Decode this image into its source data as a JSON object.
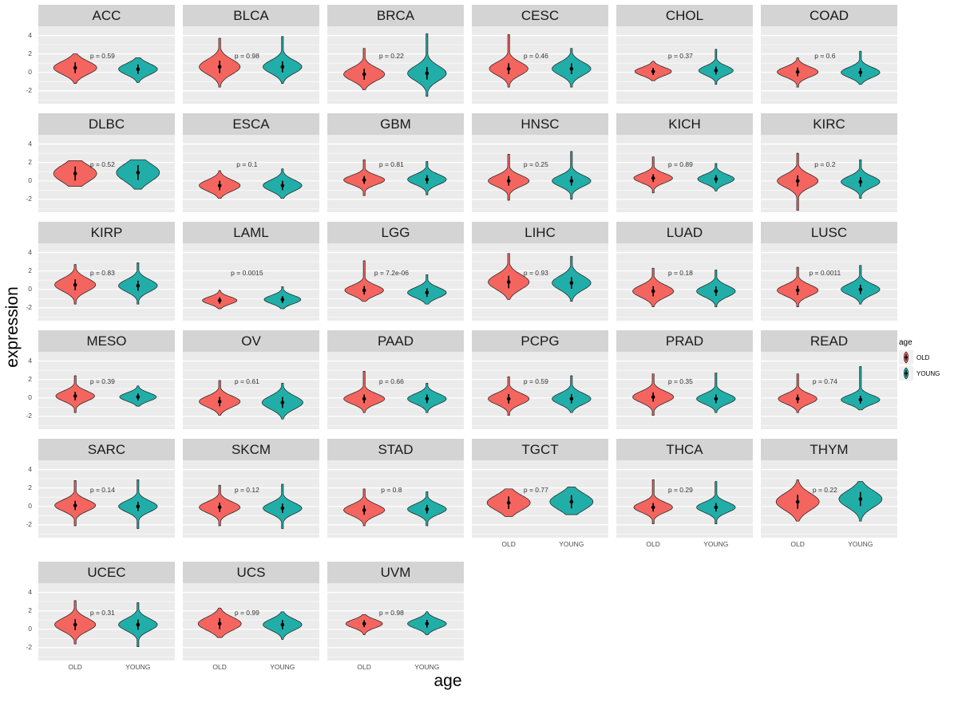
{
  "chart_data": {
    "type": "violin",
    "title": "",
    "xlabel": "age",
    "ylabel": "expression",
    "x_categories": [
      "OLD",
      "YOUNG"
    ],
    "y_ticks": [
      4,
      2,
      0,
      -2
    ],
    "y_minor_ticks": [
      -3,
      -1,
      1,
      3
    ],
    "y_range": [
      -3.4,
      5.0
    ],
    "grid": "on",
    "legend": {
      "title": "age",
      "position": "right",
      "entries": [
        {
          "label": "OLD",
          "color_key": "old"
        },
        {
          "label": "YOUNG",
          "color_key": "young"
        }
      ]
    },
    "colors": {
      "old": "#F4655F",
      "young": "#21AEA8",
      "panel_bg": "#EBEBEB",
      "strip_bg": "#D4D4D4",
      "grid": "#FFFFFF"
    },
    "p_label_y": 1.55,
    "facets": [
      {
        "name": "ACC",
        "p_label": "p = 0.59",
        "old": {
          "m": 0.5,
          "s": 0.7,
          "lo": -1.2,
          "hi": 2.0,
          "w": 1
        },
        "young": {
          "m": 0.35,
          "s": 0.6,
          "lo": -1.1,
          "hi": 1.6,
          "w": 0.9
        }
      },
      {
        "name": "BLCA",
        "p_label": "p = 0.98",
        "old": {
          "m": 0.6,
          "s": 0.8,
          "lo": -1.6,
          "hi": 3.7,
          "w": 0.95
        },
        "young": {
          "m": 0.6,
          "s": 0.7,
          "lo": -1.2,
          "hi": 3.9,
          "w": 0.9
        }
      },
      {
        "name": "BRCA",
        "p_label": "p = 0.22",
        "old": {
          "m": -0.2,
          "s": 0.7,
          "lo": -1.9,
          "hi": 2.6,
          "w": 0.95
        },
        "young": {
          "m": -0.1,
          "s": 0.8,
          "lo": -2.6,
          "hi": 4.2,
          "w": 0.9
        }
      },
      {
        "name": "CESC",
        "p_label": "p = 0.46",
        "old": {
          "m": 0.4,
          "s": 0.7,
          "lo": -1.6,
          "hi": 4.1,
          "w": 0.9
        },
        "young": {
          "m": 0.4,
          "s": 0.7,
          "lo": -1.6,
          "hi": 2.6,
          "w": 0.9
        }
      },
      {
        "name": "CHOL",
        "p_label": "p = 0.37",
        "old": {
          "m": 0.1,
          "s": 0.45,
          "lo": -0.9,
          "hi": 1.2,
          "w": 0.85
        },
        "young": {
          "m": 0.2,
          "s": 0.5,
          "lo": -1.3,
          "hi": 2.5,
          "w": 0.8
        }
      },
      {
        "name": "COAD",
        "p_label": "p = 0.6",
        "old": {
          "m": 0.05,
          "s": 0.55,
          "lo": -1.6,
          "hi": 1.6,
          "w": 0.95
        },
        "young": {
          "m": 0.0,
          "s": 0.55,
          "lo": -1.3,
          "hi": 2.3,
          "w": 0.9
        }
      },
      {
        "name": "DLBC",
        "p_label": "p = 0.52",
        "old": {
          "m": 0.8,
          "s": 0.9,
          "lo": -0.6,
          "hi": 2.2,
          "w": 1
        },
        "young": {
          "m": 0.9,
          "s": 0.95,
          "lo": -0.9,
          "hi": 2.3,
          "w": 1
        }
      },
      {
        "name": "ESCA",
        "p_label": "p = 0.1",
        "old": {
          "m": -0.5,
          "s": 0.6,
          "lo": -1.9,
          "hi": 1.1,
          "w": 0.95
        },
        "young": {
          "m": -0.5,
          "s": 0.6,
          "lo": -1.9,
          "hi": 1.3,
          "w": 0.9
        }
      },
      {
        "name": "GBM",
        "p_label": "p = 0.81",
        "old": {
          "m": 0.1,
          "s": 0.5,
          "lo": -1.6,
          "hi": 2.3,
          "w": 0.95
        },
        "young": {
          "m": 0.15,
          "s": 0.55,
          "lo": -1.5,
          "hi": 2.1,
          "w": 0.9
        }
      },
      {
        "name": "HNSC",
        "p_label": "p = 0.25",
        "old": {
          "m": 0.0,
          "s": 0.6,
          "lo": -2.1,
          "hi": 2.9,
          "w": 0.95
        },
        "young": {
          "m": 0.0,
          "s": 0.6,
          "lo": -2.0,
          "hi": 3.2,
          "w": 0.9
        }
      },
      {
        "name": "KICH",
        "p_label": "p = 0.89",
        "old": {
          "m": 0.3,
          "s": 0.5,
          "lo": -1.3,
          "hi": 2.6,
          "w": 0.9
        },
        "young": {
          "m": 0.2,
          "s": 0.5,
          "lo": -1.1,
          "hi": 1.9,
          "w": 0.85
        }
      },
      {
        "name": "KIRC",
        "p_label": "p = 0.2",
        "old": {
          "m": 0.0,
          "s": 0.7,
          "lo": -3.2,
          "hi": 3.0,
          "w": 0.95
        },
        "young": {
          "m": -0.1,
          "s": 0.6,
          "lo": -1.9,
          "hi": 2.3,
          "w": 0.9
        }
      },
      {
        "name": "KIRP",
        "p_label": "p = 0.83",
        "old": {
          "m": 0.5,
          "s": 0.7,
          "lo": -1.6,
          "hi": 2.7,
          "w": 0.95
        },
        "young": {
          "m": 0.4,
          "s": 0.65,
          "lo": -1.6,
          "hi": 2.9,
          "w": 0.9
        }
      },
      {
        "name": "LAML",
        "p_label": "p = 0.0015",
        "old": {
          "m": -1.2,
          "s": 0.4,
          "lo": -2.1,
          "hi": -0.1,
          "w": 0.8
        },
        "young": {
          "m": -1.1,
          "s": 0.45,
          "lo": -2.1,
          "hi": 0.3,
          "w": 0.85
        }
      },
      {
        "name": "LGG",
        "p_label": "p = 7.2e-06",
        "old": {
          "m": -0.1,
          "s": 0.55,
          "lo": -1.3,
          "hi": 3.1,
          "w": 0.9
        },
        "young": {
          "m": -0.35,
          "s": 0.55,
          "lo": -1.6,
          "hi": 1.6,
          "w": 0.9
        }
      },
      {
        "name": "LIHC",
        "p_label": "p = 0.93",
        "old": {
          "m": 0.8,
          "s": 0.8,
          "lo": -1.1,
          "hi": 3.9,
          "w": 0.95
        },
        "young": {
          "m": 0.7,
          "s": 0.75,
          "lo": -1.3,
          "hi": 3.6,
          "w": 0.9
        }
      },
      {
        "name": "LUAD",
        "p_label": "p = 0.18",
        "old": {
          "m": -0.2,
          "s": 0.65,
          "lo": -1.9,
          "hi": 2.3,
          "w": 0.95
        },
        "young": {
          "m": -0.2,
          "s": 0.6,
          "lo": -1.9,
          "hi": 2.1,
          "w": 0.9
        }
      },
      {
        "name": "LUSC",
        "p_label": "p = 0.0011",
        "old": {
          "m": -0.1,
          "s": 0.6,
          "lo": -1.9,
          "hi": 2.4,
          "w": 0.95
        },
        "young": {
          "m": 0.0,
          "s": 0.6,
          "lo": -1.6,
          "hi": 2.6,
          "w": 0.9
        }
      },
      {
        "name": "MESO",
        "p_label": "p = 0.39",
        "old": {
          "m": 0.2,
          "s": 0.55,
          "lo": -1.6,
          "hi": 2.4,
          "w": 0.9
        },
        "young": {
          "m": 0.1,
          "s": 0.45,
          "lo": -0.9,
          "hi": 1.3,
          "w": 0.85
        }
      },
      {
        "name": "OV",
        "p_label": "p = 0.61",
        "old": {
          "m": -0.4,
          "s": 0.6,
          "lo": -1.9,
          "hi": 1.9,
          "w": 0.95
        },
        "young": {
          "m": -0.5,
          "s": 0.7,
          "lo": -2.3,
          "hi": 1.6,
          "w": 0.95
        }
      },
      {
        "name": "PAAD",
        "p_label": "p = 0.66",
        "old": {
          "m": -0.1,
          "s": 0.55,
          "lo": -1.6,
          "hi": 2.9,
          "w": 0.95
        },
        "young": {
          "m": -0.1,
          "s": 0.55,
          "lo": -1.6,
          "hi": 1.6,
          "w": 0.9
        }
      },
      {
        "name": "PCPG",
        "p_label": "p = 0.59",
        "old": {
          "m": -0.1,
          "s": 0.6,
          "lo": -1.9,
          "hi": 2.3,
          "w": 0.95
        },
        "young": {
          "m": -0.1,
          "s": 0.6,
          "lo": -1.6,
          "hi": 2.4,
          "w": 0.9
        }
      },
      {
        "name": "PRAD",
        "p_label": "p = 0.35",
        "old": {
          "m": 0.1,
          "s": 0.6,
          "lo": -1.9,
          "hi": 2.6,
          "w": 0.95
        },
        "young": {
          "m": -0.1,
          "s": 0.55,
          "lo": -1.6,
          "hi": 2.7,
          "w": 0.9
        }
      },
      {
        "name": "READ",
        "p_label": "p = 0.74",
        "old": {
          "m": -0.1,
          "s": 0.55,
          "lo": -1.6,
          "hi": 2.6,
          "w": 0.9
        },
        "young": {
          "m": -0.2,
          "s": 0.5,
          "lo": -1.3,
          "hi": 3.4,
          "w": 0.9
        }
      },
      {
        "name": "SARC",
        "p_label": "p = 0.14",
        "old": {
          "m": 0.1,
          "s": 0.6,
          "lo": -2.1,
          "hi": 2.8,
          "w": 0.95
        },
        "young": {
          "m": 0.0,
          "s": 0.6,
          "lo": -2.4,
          "hi": 2.9,
          "w": 0.9
        }
      },
      {
        "name": "SKCM",
        "p_label": "p = 0.12",
        "old": {
          "m": -0.1,
          "s": 0.6,
          "lo": -2.1,
          "hi": 2.3,
          "w": 0.95
        },
        "young": {
          "m": -0.2,
          "s": 0.6,
          "lo": -2.4,
          "hi": 2.4,
          "w": 0.9
        }
      },
      {
        "name": "STAD",
        "p_label": "p = 0.8",
        "old": {
          "m": -0.4,
          "s": 0.6,
          "lo": -2.1,
          "hi": 1.9,
          "w": 0.95
        },
        "young": {
          "m": -0.3,
          "s": 0.55,
          "lo": -2.1,
          "hi": 1.6,
          "w": 0.9
        }
      },
      {
        "name": "TGCT",
        "p_label": "p = 0.77",
        "old": {
          "m": 0.4,
          "s": 0.8,
          "lo": -1.1,
          "hi": 1.9,
          "w": 1
        },
        "young": {
          "m": 0.5,
          "s": 0.85,
          "lo": -0.9,
          "hi": 2.1,
          "w": 1
        }
      },
      {
        "name": "THCA",
        "p_label": "p = 0.29",
        "old": {
          "m": -0.1,
          "s": 0.55,
          "lo": -1.9,
          "hi": 2.9,
          "w": 0.9
        },
        "young": {
          "m": -0.1,
          "s": 0.55,
          "lo": -1.9,
          "hi": 2.7,
          "w": 0.9
        }
      },
      {
        "name": "THYM",
        "p_label": "p = 0.22",
        "old": {
          "m": 0.5,
          "s": 0.9,
          "lo": -1.6,
          "hi": 2.9,
          "w": 1
        },
        "young": {
          "m": 0.8,
          "s": 0.9,
          "lo": -1.6,
          "hi": 2.7,
          "w": 1
        }
      },
      {
        "name": "UCEC",
        "p_label": "p = 0.31",
        "old": {
          "m": 0.5,
          "s": 0.7,
          "lo": -1.6,
          "hi": 3.1,
          "w": 0.95
        },
        "young": {
          "m": 0.5,
          "s": 0.65,
          "lo": -1.9,
          "hi": 2.9,
          "w": 0.9
        }
      },
      {
        "name": "UCS",
        "p_label": "p = 0.99",
        "old": {
          "m": 0.6,
          "s": 0.7,
          "lo": -0.9,
          "hi": 2.3,
          "w": 1
        },
        "young": {
          "m": 0.5,
          "s": 0.6,
          "lo": -1.1,
          "hi": 1.9,
          "w": 0.9
        }
      },
      {
        "name": "UVM",
        "p_label": "p = 0.98",
        "old": {
          "m": 0.6,
          "s": 0.45,
          "lo": -0.6,
          "hi": 1.6,
          "w": 0.85
        },
        "young": {
          "m": 0.6,
          "s": 0.5,
          "lo": -0.6,
          "hi": 1.9,
          "w": 0.9
        }
      }
    ]
  }
}
